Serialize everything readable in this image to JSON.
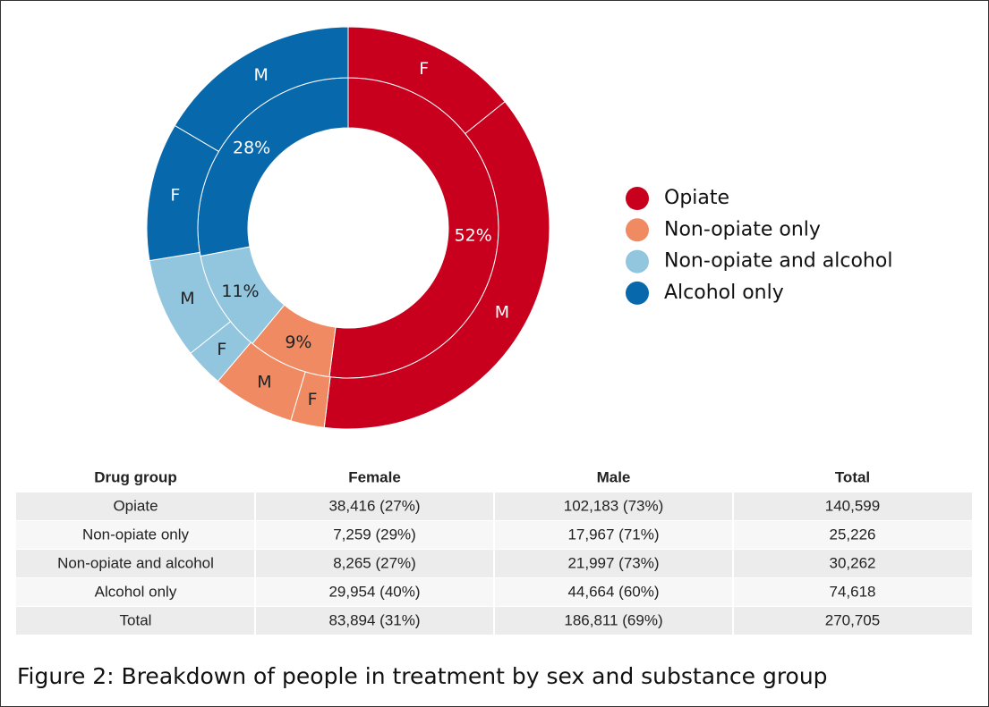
{
  "chart_data": {
    "type": "donut",
    "categories": [
      "Opiate",
      "Non-opiate only",
      "Non-opiate and alcohol",
      "Alcohol only"
    ],
    "values": [
      52,
      9,
      11,
      28
    ],
    "value_labels": [
      "52%",
      "9%",
      "11%",
      "28%"
    ],
    "colors": [
      "#c8001e",
      "#ef8a62",
      "#92c5de",
      "#0868ac"
    ],
    "outer": {
      "categories": [
        "F",
        "M",
        "F",
        "M",
        "F",
        "M",
        "F",
        "M"
      ],
      "values": [
        14.2,
        37.7,
        2.7,
        6.6,
        3.1,
        8.1,
        11.1,
        16.5
      ]
    },
    "legend": "right"
  },
  "table": {
    "headers": [
      "Drug group",
      "Female",
      "Male",
      "Total"
    ],
    "rows": [
      [
        "Opiate",
        "38,416 (27%)",
        "102,183 (73%)",
        "140,599"
      ],
      [
        "Non-opiate only",
        "7,259 (29%)",
        "17,967 (71%)",
        "25,226"
      ],
      [
        "Non-opiate and alcohol",
        "8,265 (27%)",
        "21,997 (73%)",
        "30,262"
      ],
      [
        "Alcohol only",
        "29,954 (40%)",
        "44,664 (60%)",
        "74,618"
      ],
      [
        "Total",
        "83,894 (31%)",
        "186,811 (69%)",
        "270,705"
      ]
    ]
  },
  "caption": "Figure 2: Breakdown of people in treatment by sex and substance group"
}
